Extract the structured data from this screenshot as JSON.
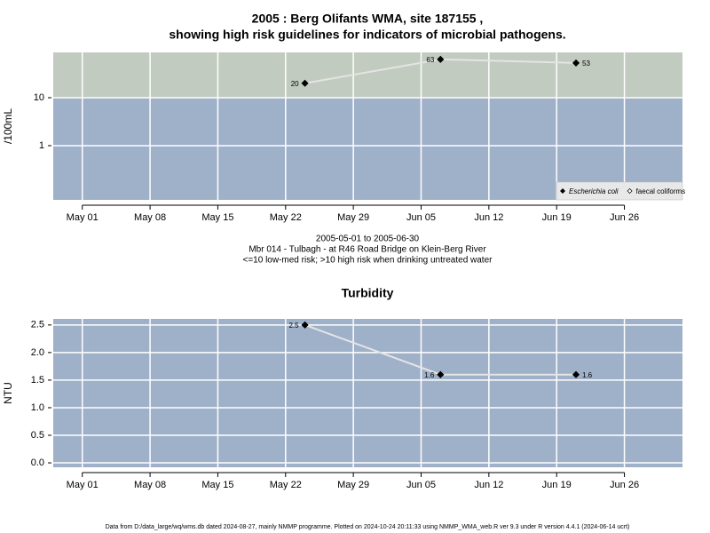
{
  "chart_data": [
    {
      "type": "line",
      "title": "2005 : Berg Olifants WMA, site 187155 ,",
      "subtitle": "showing high risk guidelines for indicators of microbial pathogens.",
      "y_label": "/100mL",
      "log_y": true,
      "x": [
        "2005-05-24",
        "2005-06-07",
        "2005-06-21"
      ],
      "series": [
        {
          "name": "Escherichia coli",
          "color": "#000000",
          "marker": "filled",
          "values": [
            20,
            63,
            53
          ]
        },
        {
          "name": "faecal coliforms",
          "color": "#000000",
          "marker": "open",
          "values": [
            null,
            null,
            null
          ]
        }
      ],
      "xlim": [
        "2005-04-28",
        "2005-07-02"
      ],
      "xticks": [
        {
          "value": "2005-05-01",
          "label": "May 01"
        },
        {
          "value": "2005-05-08",
          "label": "May 08"
        },
        {
          "value": "2005-05-15",
          "label": "May 15"
        },
        {
          "value": "2005-05-22",
          "label": "May 22"
        },
        {
          "value": "2005-05-29",
          "label": "May 29"
        },
        {
          "value": "2005-06-05",
          "label": "Jun 05"
        },
        {
          "value": "2005-06-12",
          "label": "Jun 12"
        },
        {
          "value": "2005-06-19",
          "label": "Jun 19"
        },
        {
          "value": "2005-06-26",
          "label": "Jun 26"
        }
      ],
      "ylim": [
        0.074,
        88
      ],
      "yticks": [
        1,
        10
      ],
      "threshold": 10,
      "band_colors": {
        "high": "#c2cbbf",
        "low": "#9fb0c9"
      },
      "line_color": "#e4e4e4",
      "grid": true,
      "legend": "bottom-right",
      "caption": [
        "2005-05-01 to 2005-06-30",
        "Mbr 014 - Tulbagh - at R46 Road Bridge on Klein-Berg River",
        "<=10 low-med risk; >10 high risk when drinking untreated water"
      ]
    },
    {
      "type": "line",
      "title": "Turbidity",
      "y_label": "NTU",
      "log_y": false,
      "x": [
        "2005-05-24",
        "2005-06-07",
        "2005-06-21"
      ],
      "series": [
        {
          "name": "Turbidity",
          "color": "#000000",
          "marker": "filled",
          "values": [
            2.5,
            1.6,
            1.6
          ]
        }
      ],
      "xlim": [
        "2005-04-28",
        "2005-07-02"
      ],
      "xticks": [
        {
          "value": "2005-05-01",
          "label": "May 01"
        },
        {
          "value": "2005-05-08",
          "label": "May 08"
        },
        {
          "value": "2005-05-15",
          "label": "May 15"
        },
        {
          "value": "2005-05-22",
          "label": "May 22"
        },
        {
          "value": "2005-05-29",
          "label": "May 29"
        },
        {
          "value": "2005-06-05",
          "label": "Jun 05"
        },
        {
          "value": "2005-06-12",
          "label": "Jun 12"
        },
        {
          "value": "2005-06-19",
          "label": "Jun 19"
        },
        {
          "value": "2005-06-26",
          "label": "Jun 26"
        }
      ],
      "ylim": [
        -0.08,
        2.61
      ],
      "yticks": [
        {
          "value": 0,
          "label": "0.0"
        },
        0.5,
        {
          "value": 1,
          "label": "1.0"
        },
        1.5,
        {
          "value": 2,
          "label": "2.0"
        },
        2.5
      ],
      "band_colors": {
        "low": "#9fb0c9"
      },
      "line_color": "#e4e4e4",
      "grid": true
    }
  ],
  "footer": "Data from D:/data_large/wq/wms.db dated 2024-08-27, mainly NMMP programme. Plotted on 2024-10-24 20:11:33 using NMMP_WMA_web.R ver 9.3 under R version 4.4.1 (2024-06-14 ucrt)"
}
